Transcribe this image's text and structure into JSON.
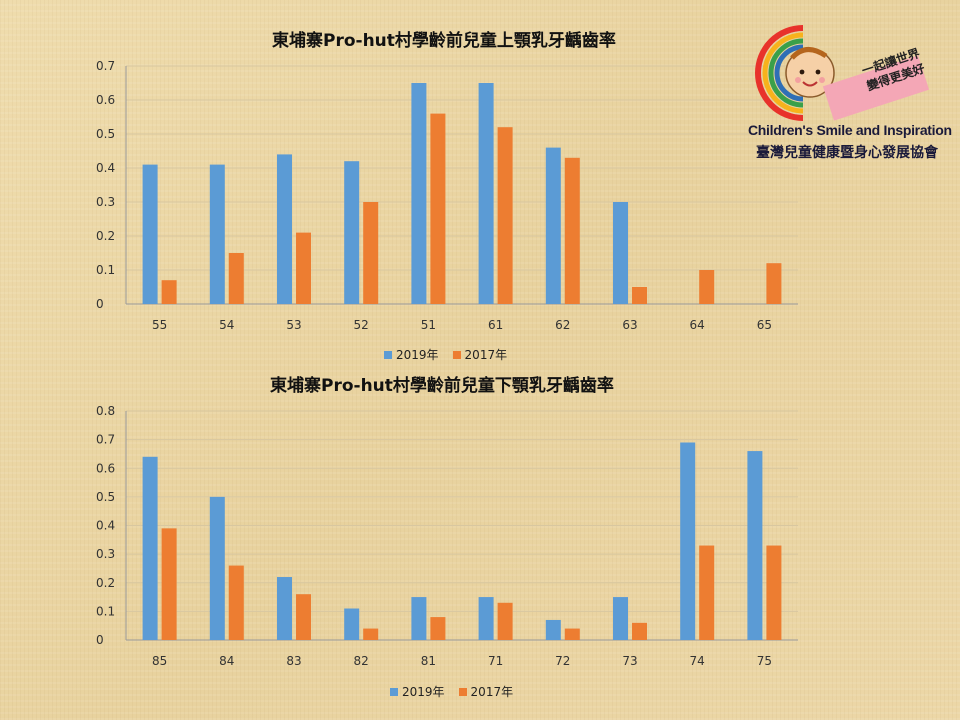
{
  "colors": {
    "series_2019": "#5b9bd5",
    "series_2017": "#ed7d31",
    "grid": "#d8c7a0",
    "axis": "#999999"
  },
  "logo": {
    "icon": "smiling-child-face-with-rainbow",
    "slogan_line1": "一起讓世界",
    "slogan_line2": "變得更美好",
    "name_en": "Children's Smile and Inspiration",
    "name_zh": "臺灣兒童健康暨身心發展協會"
  },
  "chart_data": [
    {
      "type": "bar",
      "title": "東埔寨Pro-hut村學齡前兒童上顎乳牙齲齒率",
      "categories": [
        "55",
        "54",
        "53",
        "52",
        "51",
        "61",
        "62",
        "63",
        "64",
        "65"
      ],
      "ylim": [
        0,
        0.7
      ],
      "yticks": [
        "0",
        "0.1",
        "0.2",
        "0.3",
        "0.4",
        "0.5",
        "0.6",
        "0.7"
      ],
      "grid": true,
      "legend_position": "bottom",
      "series": [
        {
          "name": "2019年",
          "values": [
            0.41,
            0.41,
            0.44,
            0.42,
            0.65,
            0.65,
            0.46,
            0.3,
            0,
            0
          ]
        },
        {
          "name": "2017年",
          "values": [
            0.07,
            0.15,
            0.21,
            0.3,
            0.56,
            0.52,
            0.43,
            0.05,
            0.1,
            0.12
          ]
        }
      ]
    },
    {
      "type": "bar",
      "title": "東埔寨Pro-hut村學齡前兒童下顎乳牙齲齒率",
      "categories": [
        "85",
        "84",
        "83",
        "82",
        "81",
        "71",
        "72",
        "73",
        "74",
        "75"
      ],
      "ylim": [
        0,
        0.8
      ],
      "yticks": [
        "0",
        "0.1",
        "0.2",
        "0.3",
        "0.4",
        "0.5",
        "0.6",
        "0.7",
        "0.8"
      ],
      "grid": true,
      "legend_position": "bottom",
      "series": [
        {
          "name": "2019年",
          "values": [
            0.64,
            0.5,
            0.22,
            0.11,
            0.15,
            0.15,
            0.07,
            0.15,
            0.69,
            0.66
          ]
        },
        {
          "name": "2017年",
          "values": [
            0.39,
            0.26,
            0.16,
            0.04,
            0.08,
            0.13,
            0.04,
            0.06,
            0.33,
            0.33
          ]
        }
      ]
    }
  ]
}
